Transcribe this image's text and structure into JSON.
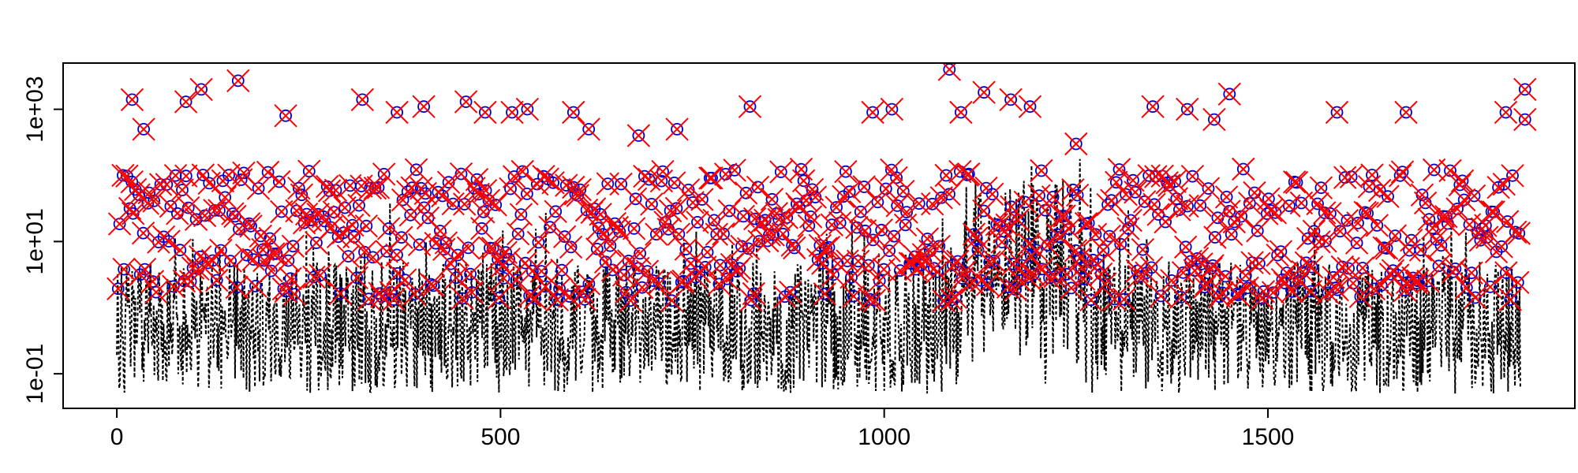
{
  "chart_data": {
    "type": "scatter",
    "title": "",
    "xlabel": "",
    "ylabel": "",
    "xlim": [
      -70,
      1900
    ],
    "ylim": [
      0.03,
      5000
    ],
    "y_scale": "log",
    "grid": false,
    "legend": "none",
    "x_ticks": [
      {
        "value": 0,
        "label": "0"
      },
      {
        "value": 500,
        "label": "500"
      },
      {
        "value": 1000,
        "label": "1000"
      },
      {
        "value": 1500,
        "label": "1500"
      }
    ],
    "y_ticks": [
      {
        "value": 0.1,
        "label": "1e-01"
      },
      {
        "value": 10,
        "label": "1e+01"
      },
      {
        "value": 1000,
        "label": "1e+03"
      }
    ],
    "n_points": 1830,
    "series": [
      {
        "style": "dotted line (dashed, black)",
        "color": "#000000"
      },
      {
        "style": "open circle",
        "color": "#0000cc"
      },
      {
        "style": "x cross",
        "color": "#ff0000"
      }
    ],
    "highlighted_points": [
      {
        "x": 20,
        "y": 1400
      },
      {
        "x": 35,
        "y": 500
      },
      {
        "x": 90,
        "y": 1300
      },
      {
        "x": 110,
        "y": 2000
      },
      {
        "x": 158,
        "y": 2700
      },
      {
        "x": 220,
        "y": 800
      },
      {
        "x": 320,
        "y": 1400
      },
      {
        "x": 365,
        "y": 900
      },
      {
        "x": 400,
        "y": 1100
      },
      {
        "x": 455,
        "y": 1300
      },
      {
        "x": 480,
        "y": 900
      },
      {
        "x": 515,
        "y": 900
      },
      {
        "x": 535,
        "y": 1000
      },
      {
        "x": 595,
        "y": 900
      },
      {
        "x": 615,
        "y": 500
      },
      {
        "x": 680,
        "y": 400
      },
      {
        "x": 730,
        "y": 500
      },
      {
        "x": 825,
        "y": 1100
      },
      {
        "x": 985,
        "y": 900
      },
      {
        "x": 1010,
        "y": 1000
      },
      {
        "x": 1085,
        "y": 4000
      },
      {
        "x": 1100,
        "y": 900
      },
      {
        "x": 1130,
        "y": 1800
      },
      {
        "x": 1165,
        "y": 1400
      },
      {
        "x": 1190,
        "y": 1100
      },
      {
        "x": 1250,
        "y": 300
      },
      {
        "x": 1350,
        "y": 1100
      },
      {
        "x": 1395,
        "y": 1000
      },
      {
        "x": 1430,
        "y": 700
      },
      {
        "x": 1450,
        "y": 1700
      },
      {
        "x": 1590,
        "y": 900
      },
      {
        "x": 1680,
        "y": 900
      },
      {
        "x": 1810,
        "y": 900
      },
      {
        "x": 1835,
        "y": 2000
      },
      {
        "x": 1835,
        "y": 700
      }
    ]
  }
}
